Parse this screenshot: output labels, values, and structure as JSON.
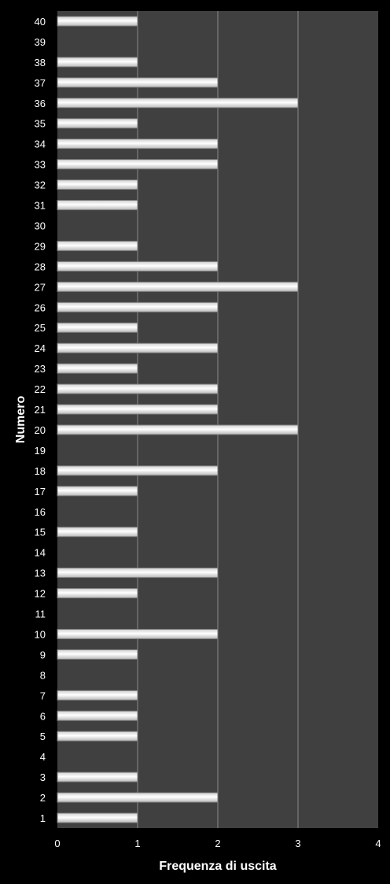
{
  "chart_data": {
    "type": "bar",
    "orientation": "horizontal",
    "categories": [
      "1",
      "2",
      "3",
      "4",
      "5",
      "6",
      "7",
      "8",
      "9",
      "10",
      "11",
      "12",
      "13",
      "14",
      "15",
      "16",
      "17",
      "18",
      "19",
      "20",
      "21",
      "22",
      "23",
      "24",
      "25",
      "26",
      "27",
      "28",
      "29",
      "30",
      "31",
      "32",
      "33",
      "34",
      "35",
      "36",
      "37",
      "38",
      "39",
      "40"
    ],
    "values": [
      1,
      2,
      1,
      0,
      1,
      1,
      1,
      0,
      1,
      2,
      0,
      1,
      2,
      0,
      1,
      0,
      1,
      2,
      0,
      3,
      2,
      2,
      1,
      2,
      1,
      2,
      3,
      2,
      1,
      0,
      1,
      1,
      2,
      2,
      1,
      3,
      2,
      1,
      0,
      1
    ],
    "xlabel": "Frequenza di uscita",
    "ylabel": "Numero",
    "xlim": [
      0,
      4
    ],
    "xticks": [
      "0",
      "1",
      "2",
      "3",
      "4"
    ],
    "grid": "vertical",
    "legend": "none",
    "colors": {
      "background": "#000000",
      "plot_area": "#404040",
      "gridline": "#8a8a8a",
      "bar_fill": "#ffffff",
      "bar_edge": "#7f7f7f",
      "text": "#ffffff"
    }
  }
}
